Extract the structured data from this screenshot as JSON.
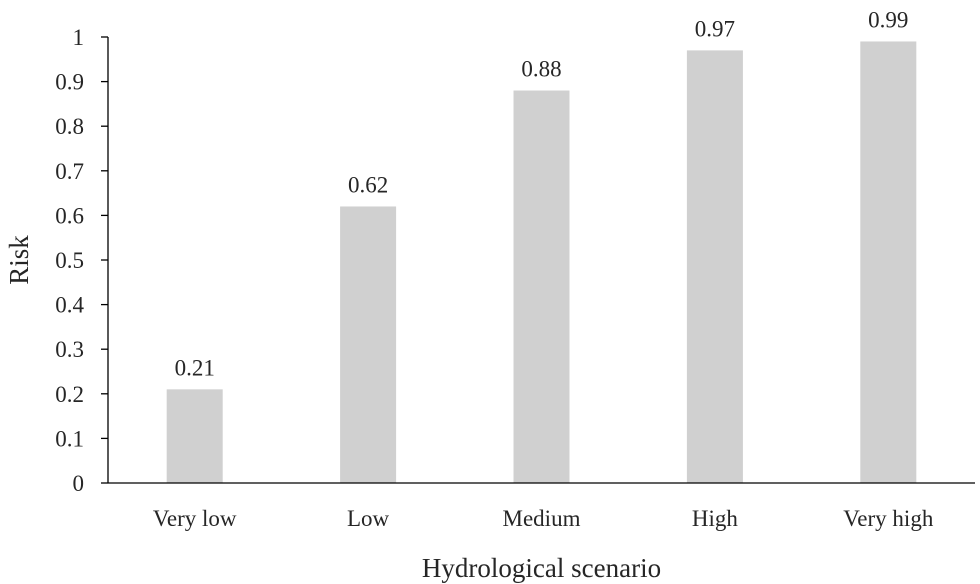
{
  "chart_data": {
    "type": "bar",
    "title": "",
    "xlabel": "Hydrological scenario",
    "ylabel": "Risk",
    "categories": [
      "Very low",
      "Low",
      "Medium",
      "High",
      "Very high"
    ],
    "values": [
      0.21,
      0.62,
      0.88,
      0.97,
      0.99
    ],
    "data_labels": [
      "0.21",
      "0.62",
      "0.88",
      "0.97",
      "0.99"
    ],
    "ylim": [
      0,
      1
    ],
    "yticks": [
      "0",
      "0.1",
      "0.2",
      "0.3",
      "0.4",
      "0.5",
      "0.6",
      "0.7",
      "0.8",
      "0.9",
      "1"
    ],
    "grid": false,
    "legend": "none",
    "bar_color": "#d0d0d0",
    "axis_color": "#000000",
    "text_color": "#262626"
  }
}
